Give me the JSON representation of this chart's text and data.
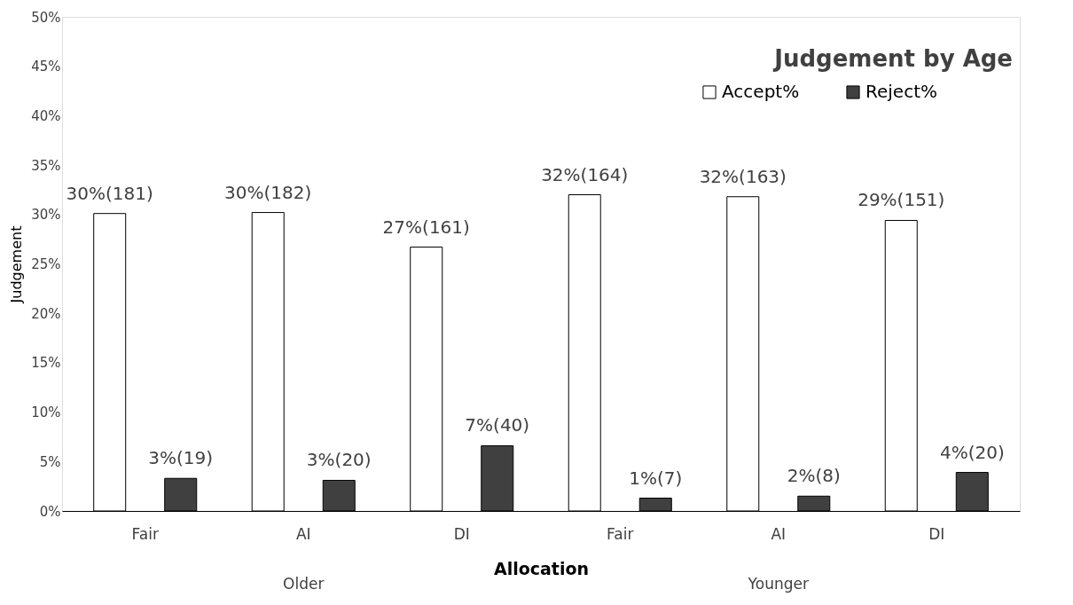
{
  "chart_data": {
    "type": "bar",
    "title": "Judgement by Age",
    "xlabel": "Allocation",
    "ylabel": "Judgement",
    "categories": [
      "Fair",
      "AI",
      "DI",
      "Fair",
      "AI",
      "DI"
    ],
    "series": [
      {
        "name": "Accept%",
        "color": "#ffffff",
        "values": [
          30.1,
          30.2,
          26.7,
          32.0,
          31.8,
          29.4
        ],
        "value_labels": [
          "30%(181)",
          "30%(182)",
          "27%(161)",
          "32%(164)",
          "32%(163)",
          "29%(151)"
        ]
      },
      {
        "name": "Reject%",
        "color": "#404040",
        "values": [
          3.3,
          3.1,
          6.6,
          1.3,
          1.5,
          3.9
        ],
        "value_labels": [
          "3%(19)",
          "3%(20)",
          "7%(40)",
          "1%(7)",
          "2%(8)",
          "4%(20)"
        ]
      }
    ],
    "annotations": [
      "Older",
      "Younger"
    ],
    "ylim": [
      0,
      50
    ],
    "yticks": [
      {
        "value": 0,
        "label": "0%"
      },
      {
        "value": 5,
        "label": "5%"
      },
      {
        "value": 10,
        "label": "10%"
      },
      {
        "value": 15,
        "label": "15%"
      },
      {
        "value": 20,
        "label": "20%"
      },
      {
        "value": 25,
        "label": "25%"
      },
      {
        "value": 30,
        "label": "30%"
      },
      {
        "value": 35,
        "label": "35%"
      },
      {
        "value": 40,
        "label": "40%"
      },
      {
        "value": 45,
        "label": "45%"
      },
      {
        "value": 50,
        "label": "50%"
      }
    ],
    "grid": false,
    "legend": "top right"
  }
}
